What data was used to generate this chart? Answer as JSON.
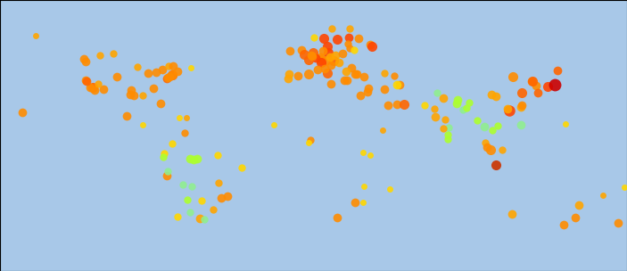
{
  "background_color": "#a8c8e8",
  "land_color": "#e8e8e8",
  "border_color": "#c8c8c8",
  "extent": [
    -170,
    180,
    -62,
    80
  ],
  "figsize": [
    7.03,
    3.04
  ],
  "dpi": 100,
  "dots": [
    {
      "lon": -122.4,
      "lat": 37.8,
      "color": "#ff8c00",
      "size": 7
    },
    {
      "lon": -118.2,
      "lat": 34.0,
      "color": "#ff6600",
      "size": 8
    },
    {
      "lon": -87.6,
      "lat": 41.9,
      "color": "#ff8c00",
      "size": 7
    },
    {
      "lon": -73.9,
      "lat": 40.7,
      "color": "#ff4500",
      "size": 8
    },
    {
      "lon": -77.0,
      "lat": 38.9,
      "color": "#ff6600",
      "size": 7
    },
    {
      "lon": -71.1,
      "lat": 42.4,
      "color": "#ff8c00",
      "size": 7
    },
    {
      "lon": -79.4,
      "lat": 43.7,
      "color": "#ff8c00",
      "size": 7
    },
    {
      "lon": -80.2,
      "lat": 25.8,
      "color": "#ff8c00",
      "size": 7
    },
    {
      "lon": -104.9,
      "lat": 39.7,
      "color": "#ff8c00",
      "size": 7
    },
    {
      "lon": -112.1,
      "lat": 33.4,
      "color": "#ff8c00",
      "size": 7
    },
    {
      "lon": -95.4,
      "lat": 29.8,
      "color": "#ff8c00",
      "size": 7
    },
    {
      "lon": -84.4,
      "lat": 33.7,
      "color": "#ff8c00",
      "size": 7
    },
    {
      "lon": -75.2,
      "lat": 39.9,
      "color": "#ff8c00",
      "size": 7
    },
    {
      "lon": -93.3,
      "lat": 44.9,
      "color": "#ffa500",
      "size": 6
    },
    {
      "lon": -122.3,
      "lat": 47.6,
      "color": "#ff8c00",
      "size": 7
    },
    {
      "lon": -157.8,
      "lat": 21.3,
      "color": "#ff8c00",
      "size": 7
    },
    {
      "lon": -149.9,
      "lat": 61.2,
      "color": "#ffa500",
      "size": 5
    },
    {
      "lon": -123.1,
      "lat": 49.3,
      "color": "#ff8c00",
      "size": 7
    },
    {
      "lon": -106.7,
      "lat": 52.1,
      "color": "#ffa500",
      "size": 6
    },
    {
      "lon": -114.1,
      "lat": 51.1,
      "color": "#ffa500",
      "size": 6
    },
    {
      "lon": -63.6,
      "lat": 44.6,
      "color": "#ffd700",
      "size": 5
    },
    {
      "lon": -75.7,
      "lat": 45.4,
      "color": "#ffa500",
      "size": 6
    },
    {
      "lon": -99.1,
      "lat": 19.4,
      "color": "#ff8c00",
      "size": 7
    },
    {
      "lon": -90.5,
      "lat": 14.6,
      "color": "#ffd700",
      "size": 5
    },
    {
      "lon": -74.1,
      "lat": 4.7,
      "color": "#ffd700",
      "size": 6
    },
    {
      "lon": -77.0,
      "lat": -12.0,
      "color": "#ff8c00",
      "size": 7
    },
    {
      "lon": -78.5,
      "lat": -0.2,
      "color": "#ffd700",
      "size": 6
    },
    {
      "lon": -66.9,
      "lat": 10.5,
      "color": "#ff8c00",
      "size": 6
    },
    {
      "lon": -43.2,
      "lat": -22.9,
      "color": "#ff8c00",
      "size": 7
    },
    {
      "lon": -46.6,
      "lat": -23.5,
      "color": "#ff8c00",
      "size": 7
    },
    {
      "lon": -70.7,
      "lat": -33.5,
      "color": "#ffd700",
      "size": 6
    },
    {
      "lon": -58.4,
      "lat": -34.6,
      "color": "#ffa500",
      "size": 7
    },
    {
      "lon": -57.6,
      "lat": -25.3,
      "color": "#ffd700",
      "size": 6
    },
    {
      "lon": -47.9,
      "lat": -15.8,
      "color": "#ffa500",
      "size": 6
    },
    {
      "lon": -34.9,
      "lat": -8.0,
      "color": "#ffd700",
      "size": 6
    },
    {
      "lon": -51.2,
      "lat": -30.0,
      "color": "#ffa500",
      "size": 6
    },
    {
      "lon": -48.5,
      "lat": -1.4,
      "color": "#ffd700",
      "size": 6
    },
    {
      "lon": -63.2,
      "lat": -17.8,
      "color": "#90ee90",
      "size": 6
    },
    {
      "lon": -68.1,
      "lat": -16.5,
      "color": "#90ee90",
      "size": 6
    },
    {
      "lon": -76.5,
      "lat": -9.9,
      "color": "#90ee90",
      "size": 6
    },
    {
      "lon": -65.2,
      "lat": -24.8,
      "color": "#adff2f",
      "size": 6
    },
    {
      "lon": -64.2,
      "lat": -31.4,
      "color": "#90ee90",
      "size": 6
    },
    {
      "lon": -56.2,
      "lat": -34.9,
      "color": "#90ee90",
      "size": 6
    },
    {
      "lon": -60.0,
      "lat": -3.0,
      "color": "#adff2f",
      "size": 7
    },
    {
      "lon": -62.0,
      "lat": -3.8,
      "color": "#adff2f",
      "size": 7
    },
    {
      "lon": -64.0,
      "lat": -3.1,
      "color": "#adff2f",
      "size": 7
    },
    {
      "lon": -1.5,
      "lat": 53.8,
      "color": "#ff8c00",
      "size": 7
    },
    {
      "lon": -0.1,
      "lat": 51.5,
      "color": "#ff6600",
      "size": 8
    },
    {
      "lon": 2.3,
      "lat": 48.9,
      "color": "#ff6600",
      "size": 8
    },
    {
      "lon": 4.9,
      "lat": 52.4,
      "color": "#ff6600",
      "size": 8
    },
    {
      "lon": 9.2,
      "lat": 48.8,
      "color": "#ff8c00",
      "size": 8
    },
    {
      "lon": 8.7,
      "lat": 50.1,
      "color": "#ff8c00",
      "size": 7
    },
    {
      "lon": 13.4,
      "lat": 52.5,
      "color": "#ff4500",
      "size": 8
    },
    {
      "lon": 11.6,
      "lat": 48.1,
      "color": "#ff8c00",
      "size": 8
    },
    {
      "lon": 9.0,
      "lat": 47.4,
      "color": "#ff4500",
      "size": 8
    },
    {
      "lon": 16.4,
      "lat": 48.2,
      "color": "#ff6600",
      "size": 8
    },
    {
      "lon": 14.5,
      "lat": 46.1,
      "color": "#ff8c00",
      "size": 7
    },
    {
      "lon": 18.1,
      "lat": 59.3,
      "color": "#ff4500",
      "size": 8
    },
    {
      "lon": 10.7,
      "lat": 59.9,
      "color": "#ff4500",
      "size": 8
    },
    {
      "lon": 12.6,
      "lat": 55.7,
      "color": "#ff4500",
      "size": 8
    },
    {
      "lon": 24.9,
      "lat": 60.2,
      "color": "#ff4500",
      "size": 7
    },
    {
      "lon": 25.0,
      "lat": 65.0,
      "color": "#ffa500",
      "size": 6
    },
    {
      "lon": 15.0,
      "lat": 65.0,
      "color": "#ffa500",
      "size": 6
    },
    {
      "lon": 5.3,
      "lat": 60.4,
      "color": "#ffd700",
      "size": 6
    },
    {
      "lon": 22.0,
      "lat": 37.9,
      "color": "#ff8c00",
      "size": 7
    },
    {
      "lon": 23.7,
      "lat": 38.0,
      "color": "#ff8c00",
      "size": 7
    },
    {
      "lon": 14.5,
      "lat": 35.9,
      "color": "#ff8c00",
      "size": 7
    },
    {
      "lon": 12.5,
      "lat": 41.9,
      "color": "#ff6600",
      "size": 8
    },
    {
      "lon": 11.3,
      "lat": 43.8,
      "color": "#ff8c00",
      "size": 7
    },
    {
      "lon": 2.2,
      "lat": 41.4,
      "color": "#ff8c00",
      "size": 8
    },
    {
      "lon": 14.0,
      "lat": 50.1,
      "color": "#ffa500",
      "size": 7
    },
    {
      "lon": 17.0,
      "lat": 51.1,
      "color": "#ffa500",
      "size": 7
    },
    {
      "lon": 19.0,
      "lat": 47.5,
      "color": "#ffa500",
      "size": 7
    },
    {
      "lon": 21.0,
      "lat": 52.2,
      "color": "#ff8c00",
      "size": 7
    },
    {
      "lon": 26.1,
      "lat": 44.4,
      "color": "#ff8c00",
      "size": 7
    },
    {
      "lon": 28.0,
      "lat": 41.0,
      "color": "#ff8c00",
      "size": 7
    },
    {
      "lon": 32.9,
      "lat": 39.9,
      "color": "#ff8c00",
      "size": 7
    },
    {
      "lon": 24.0,
      "lat": 56.9,
      "color": "#ff8c00",
      "size": 6
    },
    {
      "lon": 25.3,
      "lat": 54.7,
      "color": "#ff8c00",
      "size": 6
    },
    {
      "lon": 27.6,
      "lat": 53.9,
      "color": "#ffd700",
      "size": 6
    },
    {
      "lon": 44.4,
      "lat": 33.3,
      "color": "#ff8c00",
      "size": 7
    },
    {
      "lon": 51.5,
      "lat": 25.3,
      "color": "#ff8c00",
      "size": 7
    },
    {
      "lon": 55.3,
      "lat": 25.3,
      "color": "#ff6600",
      "size": 8
    },
    {
      "lon": 46.7,
      "lat": 24.7,
      "color": "#ff8c00",
      "size": 7
    },
    {
      "lon": 43.8,
      "lat": 11.6,
      "color": "#ffa500",
      "size": 5
    },
    {
      "lon": 36.8,
      "lat": 56.8,
      "color": "#ff8c00",
      "size": 7
    },
    {
      "lon": 30.3,
      "lat": 59.9,
      "color": "#ff8c00",
      "size": 7
    },
    {
      "lon": 37.6,
      "lat": 55.8,
      "color": "#ff4500",
      "size": 8
    },
    {
      "lon": 44.8,
      "lat": 41.7,
      "color": "#ffa500",
      "size": 6
    },
    {
      "lon": 49.9,
      "lat": 40.4,
      "color": "#ff8c00",
      "size": 6
    },
    {
      "lon": 53.0,
      "lat": 35.7,
      "color": "#ff8c00",
      "size": 7
    },
    {
      "lon": 51.4,
      "lat": 35.7,
      "color": "#ffd700",
      "size": 7
    },
    {
      "lon": 67.0,
      "lat": 24.9,
      "color": "#ffd700",
      "size": 6
    },
    {
      "lon": 74.0,
      "lat": 31.5,
      "color": "#90ee90",
      "size": 6
    },
    {
      "lon": 72.6,
      "lat": 23.0,
      "color": "#ffa500",
      "size": 6
    },
    {
      "lon": 77.2,
      "lat": 28.6,
      "color": "#ffa500",
      "size": 7
    },
    {
      "lon": 72.8,
      "lat": 19.0,
      "color": "#ffa500",
      "size": 7
    },
    {
      "lon": 80.3,
      "lat": 13.1,
      "color": "#90ee90",
      "size": 6
    },
    {
      "lon": 88.4,
      "lat": 22.6,
      "color": "#90ee90",
      "size": 6
    },
    {
      "lon": 85.3,
      "lat": 27.7,
      "color": "#adff2f",
      "size": 7
    },
    {
      "lon": 85.1,
      "lat": 25.6,
      "color": "#adff2f",
      "size": 7
    },
    {
      "lon": 90.4,
      "lat": 23.7,
      "color": "#adff2f",
      "size": 6
    },
    {
      "lon": 91.8,
      "lat": 26.2,
      "color": "#adff2f",
      "size": 6
    },
    {
      "lon": 96.2,
      "lat": 16.9,
      "color": "#adff2f",
      "size": 6
    },
    {
      "lon": 100.5,
      "lat": 13.8,
      "color": "#90ee90",
      "size": 7
    },
    {
      "lon": 103.8,
      "lat": 1.4,
      "color": "#ff8c00",
      "size": 8
    },
    {
      "lon": 106.8,
      "lat": -6.2,
      "color": "#cc3300",
      "size": 8
    },
    {
      "lon": 108.0,
      "lat": 14.1,
      "color": "#adff2f",
      "size": 6
    },
    {
      "lon": 104.9,
      "lat": 11.6,
      "color": "#adff2f",
      "size": 6
    },
    {
      "lon": 121.0,
      "lat": 14.6,
      "color": "#90ee90",
      "size": 7
    },
    {
      "lon": 114.2,
      "lat": 22.3,
      "color": "#ff4500",
      "size": 9
    },
    {
      "lon": 120.9,
      "lat": 23.9,
      "color": "#ffa500",
      "size": 7
    },
    {
      "lon": 121.5,
      "lat": 25.0,
      "color": "#ff8c00",
      "size": 7
    },
    {
      "lon": 116.4,
      "lat": 39.9,
      "color": "#ff8c00",
      "size": 8
    },
    {
      "lon": 121.5,
      "lat": 31.2,
      "color": "#ff6600",
      "size": 8
    },
    {
      "lon": 113.3,
      "lat": 23.1,
      "color": "#ffa500",
      "size": 7
    },
    {
      "lon": 106.6,
      "lat": 29.6,
      "color": "#ffa500",
      "size": 7
    },
    {
      "lon": 104.1,
      "lat": 30.7,
      "color": "#ffa500",
      "size": 7
    },
    {
      "lon": 126.7,
      "lat": 37.5,
      "color": "#ff8c00",
      "size": 7
    },
    {
      "lon": 129.0,
      "lat": 35.1,
      "color": "#ff8c00",
      "size": 7
    },
    {
      "lon": 127.0,
      "lat": 37.5,
      "color": "#ff6600",
      "size": 8
    },
    {
      "lon": 135.5,
      "lat": 34.7,
      "color": "#ff4500",
      "size": 8
    },
    {
      "lon": 139.7,
      "lat": 35.7,
      "color": "#cc0000",
      "size": 10
    },
    {
      "lon": 141.4,
      "lat": 43.1,
      "color": "#ff6600",
      "size": 7
    },
    {
      "lon": 130.4,
      "lat": 31.6,
      "color": "#ff6600",
      "size": 7
    },
    {
      "lon": 153.0,
      "lat": -27.5,
      "color": "#ffa500",
      "size": 7
    },
    {
      "lon": 151.2,
      "lat": -33.9,
      "color": "#ff8c00",
      "size": 7
    },
    {
      "lon": 144.9,
      "lat": -37.8,
      "color": "#ff8c00",
      "size": 7
    },
    {
      "lon": 174.8,
      "lat": -36.9,
      "color": "#ff8c00",
      "size": 7
    },
    {
      "lon": 115.9,
      "lat": -32.0,
      "color": "#ffa500",
      "size": 7
    },
    {
      "lon": 18.4,
      "lat": -33.9,
      "color": "#ff8c00",
      "size": 7
    },
    {
      "lon": 28.0,
      "lat": -26.2,
      "color": "#ff8c00",
      "size": 7
    },
    {
      "lon": 32.6,
      "lat": 0.3,
      "color": "#ffd700",
      "size": 5
    },
    {
      "lon": 36.8,
      "lat": -1.3,
      "color": "#ffd700",
      "size": 5
    },
    {
      "lon": 3.4,
      "lat": 6.5,
      "color": "#ff8c00",
      "size": 6
    },
    {
      "lon": 2.1,
      "lat": 5.4,
      "color": "#ffd700",
      "size": 5
    },
    {
      "lon": -17.4,
      "lat": 14.7,
      "color": "#ffd700",
      "size": 5
    },
    {
      "lon": 31.2,
      "lat": 30.1,
      "color": "#ff8c00",
      "size": 7
    },
    {
      "lon": 35.2,
      "lat": 31.8,
      "color": "#ff8c00",
      "size": 7
    },
    {
      "lon": 35.5,
      "lat": 33.9,
      "color": "#ff8c00",
      "size": 7
    },
    {
      "lon": 6.1,
      "lat": 49.6,
      "color": "#ff4500",
      "size": 7
    },
    {
      "lon": 3.7,
      "lat": 51.0,
      "color": "#ff8c00",
      "size": 7
    },
    {
      "lon": -8.6,
      "lat": 41.2,
      "color": "#ffa500",
      "size": 7
    },
    {
      "lon": -9.1,
      "lat": 38.7,
      "color": "#ffa500",
      "size": 7
    },
    {
      "lon": -3.7,
      "lat": 40.4,
      "color": "#ff8c00",
      "size": 7
    },
    {
      "lon": -73.6,
      "lat": 45.5,
      "color": "#ff8c00",
      "size": 7
    },
    {
      "lon": -83.0,
      "lat": 42.3,
      "color": "#ff8c00",
      "size": 7
    },
    {
      "lon": -117.2,
      "lat": 32.7,
      "color": "#ff8c00",
      "size": 7
    },
    {
      "lon": -90.1,
      "lat": 29.9,
      "color": "#ffa500",
      "size": 6
    },
    {
      "lon": -96.8,
      "lat": 32.8,
      "color": "#ff8c00",
      "size": 7
    },
    {
      "lon": -97.3,
      "lat": 30.3,
      "color": "#ff8c00",
      "size": 7
    },
    {
      "lon": -115.1,
      "lat": 36.2,
      "color": "#ffa500",
      "size": 6
    },
    {
      "lon": -119.8,
      "lat": 34.4,
      "color": "#ff8c00",
      "size": 7
    },
    {
      "lon": -121.9,
      "lat": 37.3,
      "color": "#ff6600",
      "size": 7
    },
    {
      "lon": -76.6,
      "lat": 39.3,
      "color": "#ff8c00",
      "size": 7
    },
    {
      "lon": -74.0,
      "lat": 40.7,
      "color": "#ff8c00",
      "size": 8
    },
    {
      "lon": 100.6,
      "lat": 5.4,
      "color": "#ffa500",
      "size": 6
    },
    {
      "lon": 101.7,
      "lat": 3.1,
      "color": "#ff8c00",
      "size": 7
    },
    {
      "lon": 110.4,
      "lat": 1.6,
      "color": "#ffa500",
      "size": 6
    },
    {
      "lon": 79.9,
      "lat": 6.9,
      "color": "#adff2f",
      "size": 6
    },
    {
      "lon": 80.0,
      "lat": 9.7,
      "color": "#adff2f",
      "size": 6
    },
    {
      "lon": 77.6,
      "lat": 12.9,
      "color": "#ffa500",
      "size": 6
    },
    {
      "lon": 78.5,
      "lat": 17.4,
      "color": "#ffa500",
      "size": 6
    },
    {
      "lon": 28.9,
      "lat": 41.0,
      "color": "#ff8c00",
      "size": 7
    },
    {
      "lon": -79.0,
      "lat": -2.2,
      "color": "#adff2f",
      "size": 6
    },
    {
      "lon": 7.0,
      "lat": 43.7,
      "color": "#ff8c00",
      "size": 7
    },
    {
      "lon": 4.4,
      "lat": 50.8,
      "color": "#ff8c00",
      "size": 7
    },
    {
      "lon": -8.0,
      "lat": 53.3,
      "color": "#ff8c00",
      "size": 7
    },
    {
      "lon": 10.0,
      "lat": 53.6,
      "color": "#ff8c00",
      "size": 7
    },
    {
      "lon": 23.3,
      "lat": 42.7,
      "color": "#ffa500",
      "size": 7
    },
    {
      "lon": -66.1,
      "lat": 18.5,
      "color": "#ffa500",
      "size": 5
    },
    {
      "lon": -69.9,
      "lat": 18.5,
      "color": "#ffd700",
      "size": 5
    },
    {
      "lon": 145.8,
      "lat": 15.2,
      "color": "#ffd700",
      "size": 5
    },
    {
      "lon": 47.5,
      "lat": -18.9,
      "color": "#ffd700",
      "size": 5
    },
    {
      "lon": 166.5,
      "lat": -22.3,
      "color": "#ffa500",
      "size": 5
    },
    {
      "lon": 178.4,
      "lat": -18.1,
      "color": "#ffd700",
      "size": 5
    },
    {
      "lon": 32.5,
      "lat": -25.9,
      "color": "#ffd700",
      "size": 5
    },
    {
      "lon": 33.0,
      "lat": -17.8,
      "color": "#ffd700",
      "size": 5
    }
  ]
}
